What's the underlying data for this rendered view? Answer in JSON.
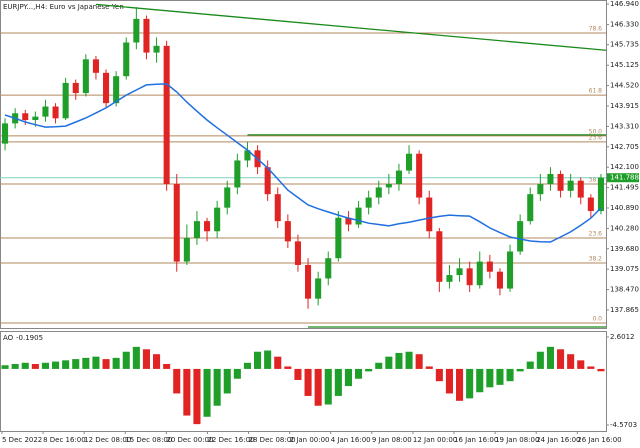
{
  "chart_data": {
    "type": "candlestick",
    "title": "EURJPY...,H4:  Euro vs Japanese Yen",
    "bull_color": "#1f9e2a",
    "bear_color": "#e02424",
    "open": [
      142.8,
      143.4,
      143.7,
      143.5,
      143.6,
      143.9,
      143.55,
      144.6,
      144.3,
      145.3,
      144.9,
      144.0,
      144.8,
      145.8,
      146.5,
      145.5,
      145.7,
      141.6,
      139.3,
      140.0,
      140.5,
      140.2,
      140.9,
      141.5,
      142.3,
      142.6,
      142.1,
      141.3,
      140.5,
      139.9,
      139.2,
      138.2,
      138.8,
      139.4,
      140.6,
      140.4,
      140.9,
      141.2,
      141.5,
      141.6,
      142.0,
      142.5,
      141.2,
      140.2,
      138.7,
      138.9,
      139.1,
      138.6,
      139.3,
      139.0,
      138.5,
      139.6,
      140.5,
      141.3,
      141.6,
      141.9,
      141.4,
      141.7,
      141.2,
      140.8
    ],
    "high": [
      143.55,
      143.85,
      143.8,
      143.75,
      144.1,
      144.0,
      144.75,
      144.7,
      145.45,
      145.4,
      145.0,
      144.95,
      145.95,
      146.85,
      146.6,
      145.95,
      145.85,
      141.9,
      140.4,
      140.8,
      140.6,
      141.1,
      141.7,
      142.5,
      142.85,
      142.75,
      142.3,
      141.5,
      140.7,
      140.1,
      139.4,
      139.0,
      139.6,
      140.8,
      140.8,
      141.1,
      141.4,
      141.7,
      141.9,
      142.2,
      142.75,
      142.6,
      141.4,
      140.3,
      139.2,
      139.4,
      139.3,
      139.6,
      139.5,
      139.1,
      139.8,
      140.7,
      141.5,
      141.9,
      142.1,
      142.0,
      141.9,
      141.8,
      141.3,
      141.9
    ],
    "low": [
      142.6,
      143.25,
      143.35,
      143.3,
      143.45,
      143.4,
      143.5,
      144.1,
      144.2,
      144.7,
      143.85,
      143.9,
      144.7,
      145.6,
      145.3,
      145.2,
      141.4,
      139.0,
      139.2,
      139.8,
      139.9,
      140.0,
      140.7,
      141.3,
      142.1,
      141.9,
      141.1,
      140.3,
      139.7,
      139.0,
      137.9,
      138.0,
      138.6,
      139.3,
      140.2,
      140.3,
      140.7,
      141.0,
      141.3,
      141.4,
      141.9,
      141.0,
      140.0,
      138.4,
      138.5,
      138.7,
      138.4,
      138.5,
      138.8,
      138.3,
      138.4,
      139.5,
      140.4,
      141.1,
      141.4,
      141.2,
      141.2,
      141.0,
      140.6,
      140.7
    ],
    "close": [
      143.4,
      143.7,
      143.5,
      143.6,
      143.9,
      143.55,
      144.6,
      144.3,
      145.3,
      144.9,
      144.0,
      144.8,
      145.8,
      146.5,
      145.5,
      145.7,
      141.6,
      139.3,
      140.0,
      140.5,
      140.2,
      140.9,
      141.5,
      142.3,
      142.6,
      142.1,
      141.3,
      140.5,
      139.9,
      139.2,
      138.2,
      138.8,
      139.4,
      140.6,
      140.4,
      140.9,
      141.2,
      141.5,
      141.6,
      142.0,
      142.5,
      141.2,
      140.2,
      138.7,
      138.9,
      139.1,
      138.6,
      139.3,
      139.0,
      138.5,
      139.6,
      140.5,
      141.3,
      141.6,
      141.9,
      141.4,
      141.7,
      141.2,
      140.8,
      141.788
    ],
    "ma": {
      "color": "#1f6fe0",
      "values": [
        143.65,
        143.55,
        143.44,
        143.36,
        143.29,
        143.3,
        143.32,
        143.44,
        143.56,
        143.71,
        143.86,
        144.05,
        144.24,
        144.39,
        144.54,
        144.56,
        144.57,
        144.33,
        144.03,
        143.76,
        143.5,
        143.27,
        143.05,
        142.83,
        142.61,
        142.34,
        142.08,
        141.75,
        141.42,
        141.2,
        140.98,
        140.87,
        140.77,
        140.68,
        140.59,
        140.52,
        140.44,
        140.4,
        140.36,
        140.42,
        140.47,
        140.53,
        140.59,
        140.64,
        140.68,
        140.66,
        140.65,
        140.48,
        140.3,
        140.16,
        140.03,
        139.97,
        139.91,
        139.89,
        139.88,
        140.03,
        140.18,
        140.38,
        140.59,
        140.89
      ]
    },
    "ylim": [
      137.33,
      147.06
    ],
    "yticks": [
      137.865,
      {
        "value": 138.47,
        "label": "138.470"
      },
      139.075,
      {
        "value": 139.68,
        "label": "139.680"
      },
      {
        "value": 140.28,
        "label": "140.280"
      },
      {
        "value": 140.89,
        "label": "140.890"
      },
      141.495,
      {
        "value": 142.1,
        "label": "142.100"
      },
      142.705,
      {
        "value": 143.31,
        "label": "143.310"
      },
      143.915,
      {
        "value": 144.52,
        "label": "144.520"
      },
      145.125,
      145.735,
      {
        "value": 146.33,
        "label": "146.330"
      },
      {
        "value": 146.94,
        "label": "146.940"
      }
    ],
    "fib_color": "#b2875e",
    "fib_levels": [
      {
        "label": "78.6",
        "value": 146.08
      },
      {
        "label": "61.8",
        "value": 144.24
      },
      {
        "label": "50.0",
        "value": 143.03
      },
      {
        "label": "23.6",
        "value": 142.85
      },
      {
        "label": "38.2",
        "value": 141.6
      },
      {
        "label": "23.6",
        "value": 140.0
      },
      {
        "label": "38.2",
        "value": 139.26
      },
      {
        "label": "0.0",
        "value": 137.48
      }
    ],
    "trendline": {
      "color": "#1a8a1a",
      "start": 146.93,
      "end": 145.57
    },
    "levels_color": "#1a8a1a",
    "levels": [
      143.06,
      137.36
    ],
    "price_line_color": "#7fd0c4",
    "time_labels": [
      "5 Dec 2022",
      "8 Dec 16:00",
      "12 Dec 08:00",
      "15 Dec 08:00",
      "20 Dec 00:00",
      "22 Dec 16:00",
      "28 Dec 08:00",
      "2 Jan 00:00",
      "4 Jan 16:00",
      "9 Jan 08:00",
      "12 Jan 00:00",
      "16 Jan 16:00",
      "19 Jan 08:00",
      "24 Jan 16:00",
      "26 Jan 16:00"
    ],
    "indicator": {
      "type": "bar",
      "name": "AO",
      "up_color": "#1f9e2a",
      "down_color": "#e02424",
      "ylim": [
        -4.5703,
        2.6012
      ],
      "yticks": [
        -4.5703,
        2.6012
      ],
      "values": [
        0.3,
        0.4,
        0.5,
        0.4,
        0.5,
        0.6,
        0.7,
        0.8,
        0.9,
        1.0,
        0.8,
        0.9,
        1.4,
        1.8,
        1.6,
        1.2,
        0.4,
        -2.0,
        -3.8,
        -4.5,
        -3.9,
        -3.0,
        -2.0,
        -0.8,
        0.5,
        1.4,
        1.5,
        1.0,
        0.2,
        -0.9,
        -2.2,
        -3.0,
        -2.9,
        -2.2,
        -1.4,
        -0.8,
        -0.2,
        0.5,
        1.0,
        1.3,
        1.4,
        1.2,
        0.2,
        -1.0,
        -2.0,
        -2.6,
        -2.4,
        -1.9,
        -1.5,
        -1.3,
        -1.0,
        -0.2,
        0.6,
        1.4,
        1.8,
        1.6,
        1.2,
        0.7,
        0.2,
        -0.1905
      ]
    }
  }
}
